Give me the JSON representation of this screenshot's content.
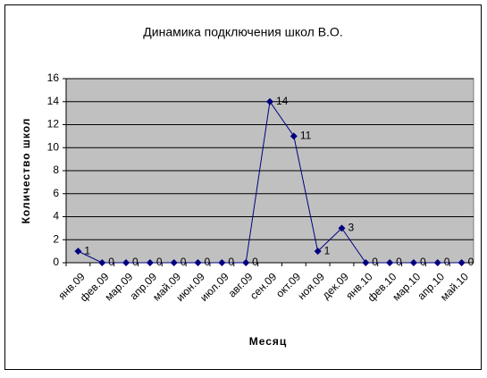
{
  "chart_data": {
    "type": "line",
    "title": "Динамика подключения школ В.О.",
    "x_label": "Месяц",
    "y_label": "Количество школ",
    "categories": [
      "янв.09",
      "фев.09",
      "мар.09",
      "апр.09",
      "май.09",
      "июн.09",
      "июл.09",
      "авг.09",
      "сен.09",
      "окт.09",
      "ноя.09",
      "дек.09",
      "янв.10",
      "фев.10",
      "мар.10",
      "апр.10",
      "май.10"
    ],
    "series": [
      {
        "name": "Количество школ",
        "color": "#000080",
        "values": [
          1,
          0,
          0,
          0,
          0,
          0,
          0,
          0,
          14,
          11,
          1,
          3,
          0,
          0,
          0,
          0,
          0
        ]
      }
    ],
    "ylim": [
      0,
      16
    ],
    "yticks": [
      0,
      2,
      4,
      6,
      8,
      10,
      12,
      14,
      16
    ],
    "grid": true
  }
}
